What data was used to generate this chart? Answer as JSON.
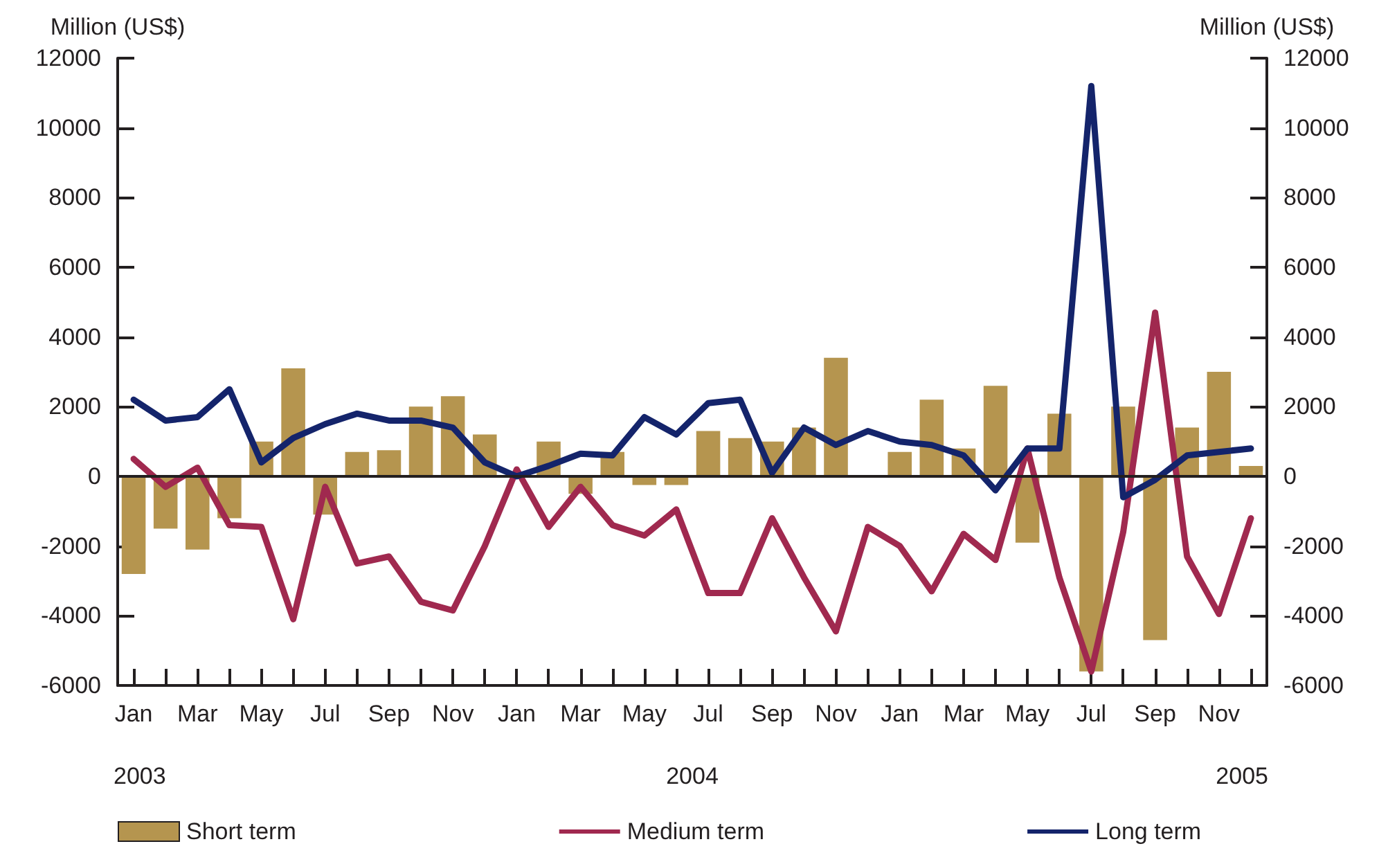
{
  "chart_data": {
    "type": "bar",
    "ylabel": "Million (US$)",
    "y2label": "Million (US$)",
    "categories": [
      "Jan",
      null,
      "Mar",
      null,
      "May",
      null,
      "Jul",
      null,
      "Sep",
      null,
      "Nov",
      null,
      "Jan",
      null,
      "Mar",
      null,
      "May",
      null,
      "Jul",
      null,
      "Sep",
      null,
      "Nov",
      null,
      "Jan",
      null,
      "Mar",
      null,
      "May",
      null,
      "Jul",
      null,
      "Sep",
      null,
      "Nov",
      null
    ],
    "annotations": [
      "2003",
      "2004",
      "2005"
    ],
    "ref_lines": [
      {
        "axis": "y",
        "value": 0,
        "color": "#231f20"
      }
    ],
    "series": [
      {
        "name": "Short term",
        "color": "#b5954f",
        "values": [
          -2800,
          -1500,
          -2100,
          -1200,
          1000,
          3100,
          -1100,
          700,
          750,
          2000,
          2300,
          1200,
          null,
          1000,
          -500,
          700,
          -250,
          -250,
          1300,
          1100,
          1000,
          1400,
          3400,
          0,
          700,
          2200,
          800,
          2600,
          -1900,
          1800,
          -5600,
          2000,
          -4700,
          1400,
          3000,
          300
        ]
      },
      {
        "name": "Medium term",
        "type": "line",
        "color": "#a0294f",
        "values": [
          500,
          -300,
          250,
          -1400,
          -1450,
          -4100,
          -300,
          -2500,
          -2300,
          -3600,
          -3850,
          -2000,
          200,
          -1450,
          -300,
          -1400,
          -1700,
          -950,
          -3350,
          -3350,
          -1200,
          -2900,
          -4450,
          -1450,
          -2000,
          -3300,
          -1650,
          -2400,
          800,
          -2900,
          -5600,
          -1600,
          4700,
          -2300,
          -3950,
          -1200
        ]
      },
      {
        "name": "Long term",
        "type": "line",
        "color": "#14246b",
        "values": [
          2200,
          1600,
          1700,
          2500,
          400,
          1100,
          1500,
          1800,
          1600,
          1600,
          1400,
          400,
          0,
          300,
          650,
          600,
          1700,
          1200,
          2100,
          2200,
          100,
          1400,
          900,
          1300,
          1000,
          900,
          600,
          -400,
          800,
          800,
          11200,
          -600,
          -100,
          600,
          700,
          800
        ]
      }
    ],
    "ylim": [
      -6000,
      12000
    ],
    "yticks": [
      -6000,
      -4000,
      -2000,
      0,
      2000,
      4000,
      6000,
      8000,
      10000,
      12000
    ],
    "y2lim": [
      -6000,
      12000
    ],
    "y2ticks": [
      -6000,
      -4000,
      -2000,
      0,
      2000,
      4000,
      6000,
      8000,
      10000,
      12000
    ],
    "grid": false,
    "legend": "bottom",
    "marker": "none",
    "line_style": "solid"
  }
}
